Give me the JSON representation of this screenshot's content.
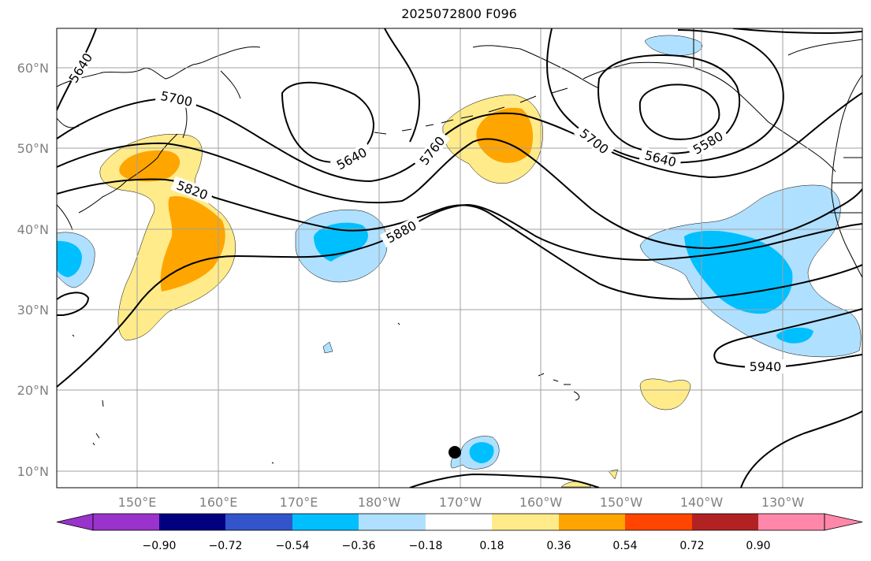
{
  "title": "2025072800 F096",
  "lat_labels": [
    "60°N",
    "50°N",
    "40°N",
    "30°N",
    "20°N",
    "10°N"
  ],
  "lon_labels": [
    "150°E",
    "160°E",
    "170°E",
    "180°W",
    "170°W",
    "160°W",
    "150°W",
    "140°W",
    "130°W"
  ],
  "contour_labels": [
    "5640",
    "5700",
    "5820",
    "5640",
    "5760",
    "5880",
    "5700",
    "5640",
    "5580",
    "5940"
  ],
  "colorbar": {
    "ticks": [
      "−0.90",
      "−0.72",
      "−0.54",
      "−0.36",
      "−0.18",
      "0.18",
      "0.36",
      "0.54",
      "0.72",
      "0.90"
    ],
    "colors": [
      "#9933cc",
      "#000080",
      "#3355cc",
      "#00bfff",
      "#b0e0ff",
      "#ffffff",
      "#ffeb8a",
      "#ffa500",
      "#ff4500",
      "#b22222",
      "#ff88aa"
    ]
  },
  "colors": {
    "pos1": "#ffeb8a",
    "pos2": "#ffa500",
    "neg1": "#b0e0ff",
    "neg2": "#00bfff",
    "contour": "#000000",
    "grid": "#a0a0a0"
  }
}
